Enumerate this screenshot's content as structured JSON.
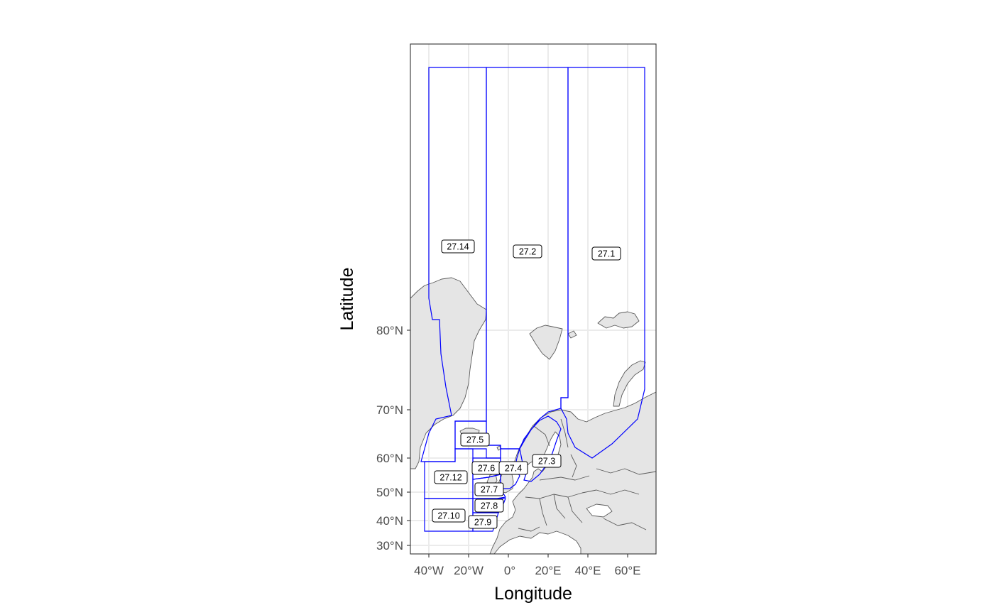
{
  "axes": {
    "x_title": "Longitude",
    "y_title": "Latitude",
    "x_ticks": [
      "40°W",
      "20°W",
      "0°",
      "20°E",
      "40°E",
      "60°E"
    ],
    "x_tick_values": [
      -40,
      -20,
      0,
      20,
      40,
      60
    ],
    "y_ticks": [
      "30°N",
      "40°N",
      "50°N",
      "60°N",
      "70°N",
      "80°N"
    ],
    "y_tick_values": [
      30,
      40,
      50,
      60,
      70,
      80
    ]
  },
  "areas": [
    {
      "id": "27.14",
      "label": "27.14"
    },
    {
      "id": "27.2",
      "label": "27.2"
    },
    {
      "id": "27.1",
      "label": "27.1"
    },
    {
      "id": "27.5",
      "label": "27.5"
    },
    {
      "id": "27.3",
      "label": "27.3"
    },
    {
      "id": "27.6",
      "label": "27.6"
    },
    {
      "id": "27.4",
      "label": "27.4"
    },
    {
      "id": "27.12",
      "label": "27.12"
    },
    {
      "id": "27.7",
      "label": "27.7"
    },
    {
      "id": "27.8",
      "label": "27.8"
    },
    {
      "id": "27.10",
      "label": "27.10"
    },
    {
      "id": "27.9",
      "label": "27.9"
    }
  ],
  "colors": {
    "land_fill": "#e5e5e5",
    "land_stroke": "#5a5a5a",
    "area_stroke": "#0000ff",
    "grid": "#ebebeb",
    "panel_border": "#333333"
  }
}
